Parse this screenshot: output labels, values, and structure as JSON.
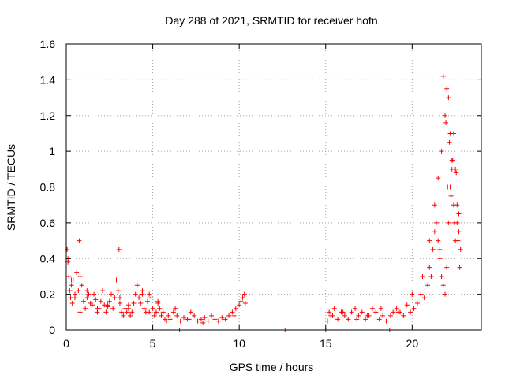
{
  "chart_data": {
    "type": "scatter",
    "title": "Day 288 of 2021, SRMTID for receiver hofn",
    "xlabel": "GPS time / hours",
    "ylabel": "SRMTID / TECUs",
    "xlim": [
      0,
      24
    ],
    "ylim": [
      0,
      1.6
    ],
    "xticks": [
      "0",
      "5",
      "10",
      "15",
      "20"
    ],
    "yticks": [
      "0",
      "0.2",
      "0.4",
      "0.6",
      "0.8",
      "1",
      "1.2",
      "1.4",
      "1.6"
    ],
    "grid": true,
    "marker": "+",
    "color": "#ff0000",
    "series": [
      {
        "name": "SRMTID",
        "x": [
          0.05,
          0.1,
          0.15,
          0.2,
          0.25,
          0.3,
          0.35,
          0.4,
          0.5,
          0.6,
          0.7,
          0.75,
          0.8,
          0.9,
          1.0,
          1.1,
          1.2,
          1.3,
          1.4,
          1.5,
          1.6,
          1.7,
          1.8,
          1.9,
          2.0,
          2.1,
          2.2,
          2.3,
          2.4,
          2.5,
          2.6,
          2.7,
          2.8,
          2.9,
          3.0,
          3.05,
          3.1,
          3.2,
          3.3,
          3.4,
          3.5,
          3.6,
          3.7,
          3.8,
          3.9,
          4.0,
          4.1,
          4.2,
          4.3,
          4.4,
          4.5,
          4.6,
          4.7,
          4.8,
          4.9,
          5.0,
          5.1,
          5.2,
          5.3,
          5.4,
          5.5,
          5.6,
          5.7,
          5.8,
          5.9,
          6.0,
          6.2,
          6.4,
          6.6,
          6.8,
          7.0,
          7.2,
          7.4,
          7.6,
          7.8,
          8.0,
          8.2,
          8.4,
          8.6,
          8.8,
          9.0,
          9.2,
          9.4,
          9.6,
          9.8,
          10.0,
          10.1,
          10.2,
          10.3,
          10.35,
          6.55,
          12.65,
          15.0,
          15.1,
          15.2,
          15.3,
          15.5,
          15.7,
          15.9,
          16.1,
          16.3,
          16.5,
          16.7,
          16.9,
          17.1,
          17.3,
          17.5,
          17.7,
          17.9,
          18.1,
          18.3,
          18.5,
          18.7,
          18.75,
          18.9,
          19.1,
          19.3,
          19.5,
          19.7,
          19.9,
          20.1,
          20.3,
          20.5,
          20.7,
          20.9,
          21.0,
          21.1,
          21.2,
          21.3,
          21.4,
          21.5,
          21.6,
          21.7,
          21.8,
          21.9,
          22.0,
          22.1,
          22.2,
          22.3,
          22.4,
          22.5,
          22.6,
          22.7,
          22.8,
          0.1,
          0.3,
          0.5,
          0.8,
          1.2,
          1.8,
          2.4,
          3.1,
          3.6,
          4.4,
          4.8,
          5.3,
          6.3,
          7.1,
          7.9,
          8.8,
          9.7,
          15.4,
          16.0,
          16.8,
          17.4,
          18.2,
          19.2,
          20.0,
          20.6,
          21.0,
          21.3,
          21.5,
          21.7,
          21.9,
          22.0,
          22.1,
          22.2,
          22.3,
          22.4,
          22.5,
          22.6,
          22.7,
          21.8,
          22.05,
          22.25,
          22.45,
          22.65,
          21.6,
          21.95,
          22.15,
          22.35,
          22.55,
          22.75
        ],
        "y": [
          0.45,
          0.38,
          0.3,
          0.22,
          0.18,
          0.25,
          0.15,
          0.28,
          0.2,
          0.32,
          0.22,
          0.5,
          0.3,
          0.25,
          0.16,
          0.12,
          0.18,
          0.2,
          0.15,
          0.14,
          0.2,
          0.17,
          0.1,
          0.12,
          0.16,
          0.22,
          0.14,
          0.1,
          0.13,
          0.16,
          0.2,
          0.12,
          0.18,
          0.28,
          0.22,
          0.45,
          0.15,
          0.1,
          0.08,
          0.12,
          0.1,
          0.14,
          0.08,
          0.1,
          0.15,
          0.2,
          0.25,
          0.18,
          0.15,
          0.22,
          0.12,
          0.1,
          0.16,
          0.2,
          0.18,
          0.12,
          0.08,
          0.1,
          0.15,
          0.12,
          0.08,
          0.1,
          0.06,
          0.05,
          0.08,
          0.06,
          0.1,
          0.08,
          0.05,
          0.07,
          0.06,
          0.1,
          0.08,
          0.05,
          0.06,
          0.07,
          0.05,
          0.08,
          0.06,
          0.05,
          0.07,
          0.06,
          0.08,
          0.1,
          0.12,
          0.14,
          0.16,
          0.18,
          0.2,
          0.15,
          0.0,
          0.0,
          0.0,
          0.05,
          0.1,
          0.08,
          0.12,
          0.06,
          0.1,
          0.08,
          0.06,
          0.1,
          0.12,
          0.08,
          0.1,
          0.06,
          0.08,
          0.12,
          0.1,
          0.06,
          0.08,
          0.05,
          0.0,
          0.08,
          0.1,
          0.12,
          0.1,
          0.08,
          0.14,
          0.1,
          0.12,
          0.15,
          0.2,
          0.18,
          0.25,
          0.35,
          0.3,
          0.45,
          0.55,
          0.6,
          0.5,
          0.4,
          0.3,
          0.25,
          0.2,
          0.35,
          0.6,
          0.8,
          0.95,
          1.1,
          0.9,
          0.7,
          0.55,
          0.45,
          0.4,
          0.28,
          0.18,
          0.1,
          0.22,
          0.12,
          0.14,
          0.18,
          0.12,
          0.2,
          0.1,
          0.16,
          0.12,
          0.06,
          0.04,
          0.05,
          0.08,
          0.08,
          0.1,
          0.06,
          0.08,
          0.12,
          0.1,
          0.2,
          0.3,
          0.5,
          0.7,
          0.85,
          1.0,
          1.2,
          1.35,
          1.3,
          1.1,
          0.9,
          0.7,
          0.5,
          0.6,
          0.65,
          1.42,
          0.8,
          0.75,
          0.6,
          0.5,
          0.45,
          1.16,
          1.05,
          0.95,
          0.88,
          0.35
        ]
      }
    ]
  }
}
